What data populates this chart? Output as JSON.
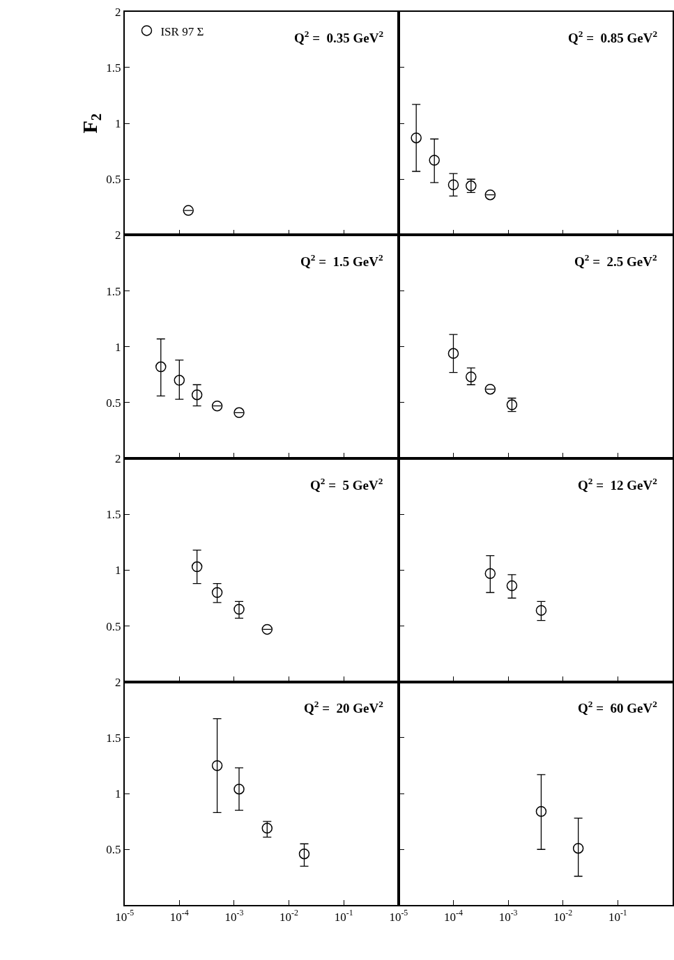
{
  "chart_data": [
    {
      "type": "scatter",
      "title": "Q$^{2}$ =  0.35 GeV$^{2}$",
      "ylabel": "F$_{2}$",
      "legend": "top left",
      "marker": "circle",
      "log": "x",
      "tick_labels": "y",
      "xlim": [
        1e-05,
        1
      ],
      "ylim": [
        0,
        2
      ],
      "yticks": [
        {
          "value": 0,
          "label": null
        },
        0.5,
        1,
        1.5,
        2
      ],
      "xticks": [
        {
          "value": 1e-05,
          "label": null
        },
        {
          "value": 0.0001,
          "label": null
        },
        {
          "value": 0.001,
          "label": null
        },
        {
          "value": 0.01,
          "label": null
        },
        {
          "value": 0.1,
          "label": null
        },
        {
          "value": 1,
          "label": null
        }
      ],
      "x": [
        0.000146
      ],
      "series": [
        {
          "name": "ISR 97 Σ",
          "color": "#000000",
          "values": [
            0.22
          ],
          "errors": [
            null
          ]
        }
      ]
    },
    {
      "type": "scatter",
      "title": "Q$^{2}$ =  0.85 GeV$^{2}$",
      "marker": "circle",
      "log": "x",
      "tick_labels": false,
      "xlim": [
        1e-05,
        1
      ],
      "ylim": [
        0,
        2
      ],
      "yticks": [
        {
          "value": 0,
          "label": null
        },
        {
          "value": 0.5,
          "label": null
        },
        {
          "value": 1,
          "label": null
        },
        {
          "value": 1.5,
          "label": null
        },
        {
          "value": 2,
          "label": null
        }
      ],
      "xticks": [
        {
          "value": 1e-05,
          "label": null
        },
        {
          "value": 0.0001,
          "label": null
        },
        {
          "value": 0.001,
          "label": null
        },
        {
          "value": 0.01,
          "label": null
        },
        {
          "value": 0.1,
          "label": null
        },
        {
          "value": 1,
          "label": null
        }
      ],
      "x": [
        2.1e-05,
        4.5e-05,
        0.0001,
        0.00021,
        0.00047
      ],
      "series": [
        {
          "color": "#000000",
          "values": [
            0.87,
            0.67,
            0.45,
            0.44,
            0.36
          ],
          "errors": [
            [
              0.57,
              1.17
            ],
            [
              0.47,
              0.86
            ],
            [
              0.35,
              0.55
            ],
            [
              0.38,
              0.5
            ],
            null
          ]
        }
      ]
    },
    {
      "type": "scatter",
      "title": "Q$^{2}$ =  1.5 GeV$^{2}$",
      "marker": "circle",
      "log": "x",
      "tick_labels": "y",
      "xlim": [
        1e-05,
        1
      ],
      "ylim": [
        0,
        2
      ],
      "yticks": [
        {
          "value": 0,
          "label": null
        },
        0.5,
        1,
        1.5,
        2
      ],
      "xticks": [
        {
          "value": 1e-05,
          "label": null
        },
        {
          "value": 0.0001,
          "label": null
        },
        {
          "value": 0.001,
          "label": null
        },
        {
          "value": 0.01,
          "label": null
        },
        {
          "value": 0.1,
          "label": null
        },
        {
          "value": 1,
          "label": null
        }
      ],
      "x": [
        4.6e-05,
        0.0001,
        0.00021,
        0.00049,
        0.00123
      ],
      "series": [
        {
          "color": "#000000",
          "values": [
            0.82,
            0.7,
            0.57,
            0.47,
            0.41
          ],
          "errors": [
            [
              0.56,
              1.07
            ],
            [
              0.53,
              0.88
            ],
            [
              0.47,
              0.66
            ],
            null,
            null
          ]
        }
      ]
    },
    {
      "type": "scatter",
      "title": "Q$^{2}$ =  2.5 GeV$^{2}$",
      "marker": "circle",
      "log": "x",
      "tick_labels": false,
      "xlim": [
        1e-05,
        1
      ],
      "ylim": [
        0,
        2
      ],
      "yticks": [
        {
          "value": 0,
          "label": null
        },
        {
          "value": 0.5,
          "label": null
        },
        {
          "value": 1,
          "label": null
        },
        {
          "value": 1.5,
          "label": null
        },
        {
          "value": 2,
          "label": null
        }
      ],
      "xticks": [
        {
          "value": 1e-05,
          "label": null
        },
        {
          "value": 0.0001,
          "label": null
        },
        {
          "value": 0.001,
          "label": null
        },
        {
          "value": 0.01,
          "label": null
        },
        {
          "value": 0.1,
          "label": null
        },
        {
          "value": 1,
          "label": null
        }
      ],
      "x": [
        0.0001,
        0.00021,
        0.00047,
        0.00117
      ],
      "series": [
        {
          "color": "#000000",
          "values": [
            0.94,
            0.73,
            0.62,
            0.48
          ],
          "errors": [
            [
              0.77,
              1.11
            ],
            [
              0.66,
              0.81
            ],
            null,
            [
              0.42,
              0.54
            ]
          ]
        }
      ]
    },
    {
      "type": "scatter",
      "title": "Q$^{2}$ =  5 GeV$^{2}$",
      "marker": "circle",
      "log": "x",
      "tick_labels": "y",
      "xlim": [
        1e-05,
        1
      ],
      "ylim": [
        0,
        2
      ],
      "yticks": [
        {
          "value": 0,
          "label": null
        },
        0.5,
        1,
        1.5,
        2
      ],
      "xticks": [
        {
          "value": 1e-05,
          "label": null
        },
        {
          "value": 0.0001,
          "label": null
        },
        {
          "value": 0.001,
          "label": null
        },
        {
          "value": 0.01,
          "label": null
        },
        {
          "value": 0.1,
          "label": null
        },
        {
          "value": 1,
          "label": null
        }
      ],
      "x": [
        0.00021,
        0.00049,
        0.00123,
        0.004
      ],
      "series": [
        {
          "color": "#000000",
          "values": [
            1.03,
            0.8,
            0.65,
            0.47
          ],
          "errors": [
            [
              0.88,
              1.18
            ],
            [
              0.71,
              0.88
            ],
            [
              0.57,
              0.72
            ],
            null
          ]
        }
      ]
    },
    {
      "type": "scatter",
      "title": "Q$^{2}$ =  12 GeV$^{2}$",
      "marker": "circle",
      "log": "x",
      "tick_labels": false,
      "xlim": [
        1e-05,
        1
      ],
      "ylim": [
        0,
        2
      ],
      "yticks": [
        {
          "value": 0,
          "label": null
        },
        {
          "value": 0.5,
          "label": null
        },
        {
          "value": 1,
          "label": null
        },
        {
          "value": 1.5,
          "label": null
        },
        {
          "value": 2,
          "label": null
        }
      ],
      "xticks": [
        {
          "value": 1e-05,
          "label": null
        },
        {
          "value": 0.0001,
          "label": null
        },
        {
          "value": 0.001,
          "label": null
        },
        {
          "value": 0.01,
          "label": null
        },
        {
          "value": 0.1,
          "label": null
        },
        {
          "value": 1,
          "label": null
        }
      ],
      "x": [
        0.00047,
        0.00117,
        0.004
      ],
      "series": [
        {
          "color": "#000000",
          "values": [
            0.97,
            0.86,
            0.64
          ],
          "errors": [
            [
              0.8,
              1.13
            ],
            [
              0.75,
              0.96
            ],
            [
              0.55,
              0.72
            ]
          ]
        }
      ]
    },
    {
      "type": "scatter",
      "title": "Q$^{2}$ =  20 GeV$^{2}$",
      "marker": "circle",
      "log": "x",
      "xlim": [
        1e-05,
        1
      ],
      "ylim": [
        0,
        2
      ],
      "yticks": [
        {
          "value": 0,
          "label": null
        },
        0.5,
        1,
        1.5,
        2
      ],
      "xticks": [
        {
          "value": 1e-05,
          "label": "10$^{-5}$"
        },
        {
          "value": 0.0001,
          "label": "10$^{-4}$"
        },
        {
          "value": 0.001,
          "label": "10$^{-3}$"
        },
        {
          "value": 0.01,
          "label": "10$^{-2}$"
        },
        {
          "value": 0.1,
          "label": "10$^{-1}$"
        },
        {
          "value": 1,
          "label": null
        }
      ],
      "x": [
        0.00049,
        0.00123,
        0.004,
        0.019
      ],
      "series": [
        {
          "color": "#000000",
          "values": [
            1.25,
            1.04,
            0.69,
            0.46
          ],
          "errors": [
            [
              0.83,
              1.67
            ],
            [
              0.85,
              1.23
            ],
            [
              0.61,
              0.75
            ],
            [
              0.35,
              0.55
            ]
          ]
        }
      ]
    },
    {
      "type": "scatter",
      "title": "Q$^{2}$ =  60 GeV$^{2}$",
      "marker": "circle",
      "log": "x",
      "tick_labels": "x",
      "xlim": [
        1e-05,
        1
      ],
      "ylim": [
        0,
        2
      ],
      "yticks": [
        {
          "value": 0,
          "label": null
        },
        {
          "value": 0.5,
          "label": null
        },
        {
          "value": 1,
          "label": null
        },
        {
          "value": 1.5,
          "label": null
        },
        {
          "value": 2,
          "label": null
        }
      ],
      "xticks": [
        {
          "value": 1e-05,
          "label": "10$^{-5}$"
        },
        {
          "value": 0.0001,
          "label": "10$^{-4}$"
        },
        {
          "value": 0.001,
          "label": "10$^{-3}$"
        },
        {
          "value": 0.01,
          "label": "10$^{-2}$"
        },
        {
          "value": 0.1,
          "label": "10$^{-1}$"
        },
        {
          "value": 1,
          "label": null
        }
      ],
      "x": [
        0.004,
        0.019
      ],
      "series": [
        {
          "color": "#000000",
          "values": [
            0.84,
            0.51
          ],
          "errors": [
            [
              0.5,
              1.17
            ],
            [
              0.26,
              0.78
            ]
          ]
        }
      ]
    }
  ]
}
